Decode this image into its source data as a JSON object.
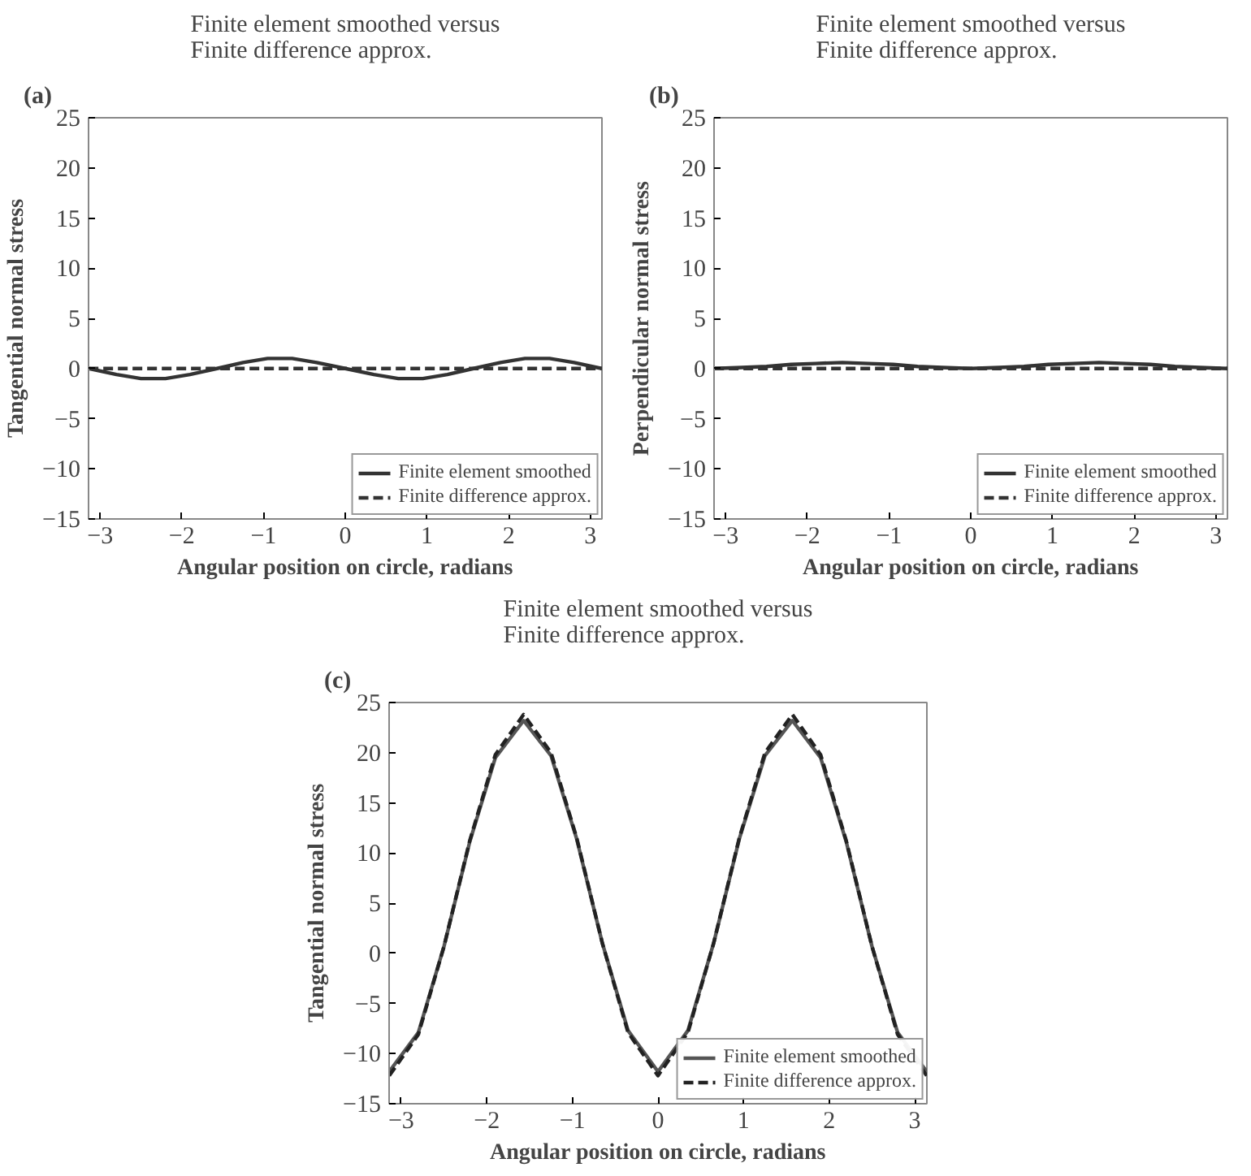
{
  "chart_data": [
    {
      "type": "line",
      "title": "Finite element smoothed versus\nFinite difference approx.",
      "xlabel": "Angular position on circle, radians",
      "ylabel": "Tangential normal stress",
      "annotations": [
        "(a)"
      ],
      "x": [
        -3.14,
        -2.8,
        -2.5,
        -2.2,
        -1.9,
        -1.57,
        -1.25,
        -0.95,
        -0.65,
        -0.35,
        0,
        0.35,
        0.65,
        0.95,
        1.25,
        1.57,
        1.9,
        2.2,
        2.5,
        2.8,
        3.14
      ],
      "series": [
        {
          "name": "Finite element smoothed",
          "color": "#333333",
          "line_style": "solid",
          "values": [
            0,
            -0.6,
            -1,
            -1,
            -0.6,
            0,
            0.6,
            1,
            1,
            0.6,
            0,
            -0.6,
            -1,
            -1,
            -0.6,
            0,
            0.6,
            1,
            1,
            0.6,
            0
          ]
        },
        {
          "name": "Finite difference approx.",
          "color": "#333333",
          "line_style": "dashed",
          "values": [
            0,
            0,
            0,
            0,
            0,
            0,
            0,
            0,
            0,
            0,
            0,
            0,
            0,
            0,
            0,
            0,
            0,
            0,
            0,
            0,
            0
          ]
        }
      ],
      "xlim": [
        -3.1416,
        3.1416
      ],
      "xticks": [
        -3,
        -2,
        -1,
        0,
        1,
        2,
        3
      ],
      "ylim": [
        -15,
        25
      ],
      "yticks": [
        -15,
        -10,
        -5,
        0,
        5,
        10,
        15,
        20,
        25
      ],
      "grid": false,
      "legend": "bottom right"
    },
    {
      "type": "line",
      "title": "Finite element smoothed versus\nFinite difference approx.",
      "xlabel": "Angular position on circle, radians",
      "ylabel": "Perpendicular normal stress",
      "annotations": [
        "(b)"
      ],
      "x": [
        -3.14,
        -2.8,
        -2.5,
        -2.2,
        -1.9,
        -1.57,
        -1.25,
        -0.95,
        -0.65,
        -0.35,
        0,
        0.35,
        0.65,
        0.95,
        1.25,
        1.57,
        1.9,
        2.2,
        2.5,
        2.8,
        3.14
      ],
      "series": [
        {
          "name": "Finite element smoothed",
          "color": "#333333",
          "line_style": "solid",
          "values": [
            0,
            0.1,
            0.2,
            0.4,
            0.5,
            0.6,
            0.5,
            0.4,
            0.2,
            0.1,
            0,
            0.1,
            0.2,
            0.4,
            0.5,
            0.6,
            0.5,
            0.4,
            0.2,
            0.1,
            0
          ]
        },
        {
          "name": "Finite difference approx.",
          "color": "#333333",
          "line_style": "dashed",
          "values": [
            0,
            0,
            0,
            0,
            0,
            0,
            0,
            0,
            0,
            0,
            0,
            0,
            0,
            0,
            0,
            0,
            0,
            0,
            0,
            0,
            0
          ]
        }
      ],
      "xlim": [
        -3.1416,
        3.1416
      ],
      "xticks": [
        -3,
        -2,
        -1,
        0,
        1,
        2,
        3
      ],
      "ylim": [
        -15,
        25
      ],
      "yticks": [
        -15,
        -10,
        -5,
        0,
        5,
        10,
        15,
        20,
        25
      ],
      "grid": false,
      "legend": "bottom right"
    },
    {
      "type": "line",
      "title": "Finite element smoothed versus\nFinite difference approx.",
      "xlabel": "Angular position on circle, radians",
      "ylabel": "Tangential normal stress",
      "annotations": [
        "(c)"
      ],
      "x": [
        -3.14,
        -2.8,
        -2.5,
        -2.2,
        -1.9,
        -1.57,
        -1.25,
        -0.95,
        -0.65,
        -0.35,
        0,
        0.35,
        0.65,
        0.95,
        1.25,
        1.57,
        1.9,
        2.2,
        2.5,
        2.8,
        3.14
      ],
      "series": [
        {
          "name": "Finite element smoothed",
          "color": "#555555",
          "line_style": "solid",
          "values": [
            -11.8,
            -7.9,
            0.7,
            11.1,
            19.5,
            23.2,
            19.7,
            11.4,
            1,
            -7.7,
            -11.8,
            -7.7,
            1,
            11.4,
            19.7,
            23.2,
            19.5,
            11.1,
            0.7,
            -7.9,
            -11.8
          ]
        },
        {
          "name": "Finite difference approx.",
          "color": "#222222",
          "line_style": "dashed",
          "values": [
            -12.2,
            -8.1,
            0.7,
            11.2,
            19.8,
            23.8,
            20,
            11.5,
            1,
            -7.9,
            -12.2,
            -7.9,
            1,
            11.5,
            20,
            23.8,
            19.8,
            11.2,
            0.7,
            -8.1,
            -12.2
          ]
        }
      ],
      "xlim": [
        -3.1416,
        3.1416
      ],
      "xticks": [
        -3,
        -2,
        -1,
        0,
        1,
        2,
        3
      ],
      "ylim": [
        -15,
        25
      ],
      "yticks": [
        -15,
        -10,
        -5,
        0,
        5,
        10,
        15,
        20,
        25
      ],
      "grid": false,
      "legend": "bottom right"
    }
  ]
}
